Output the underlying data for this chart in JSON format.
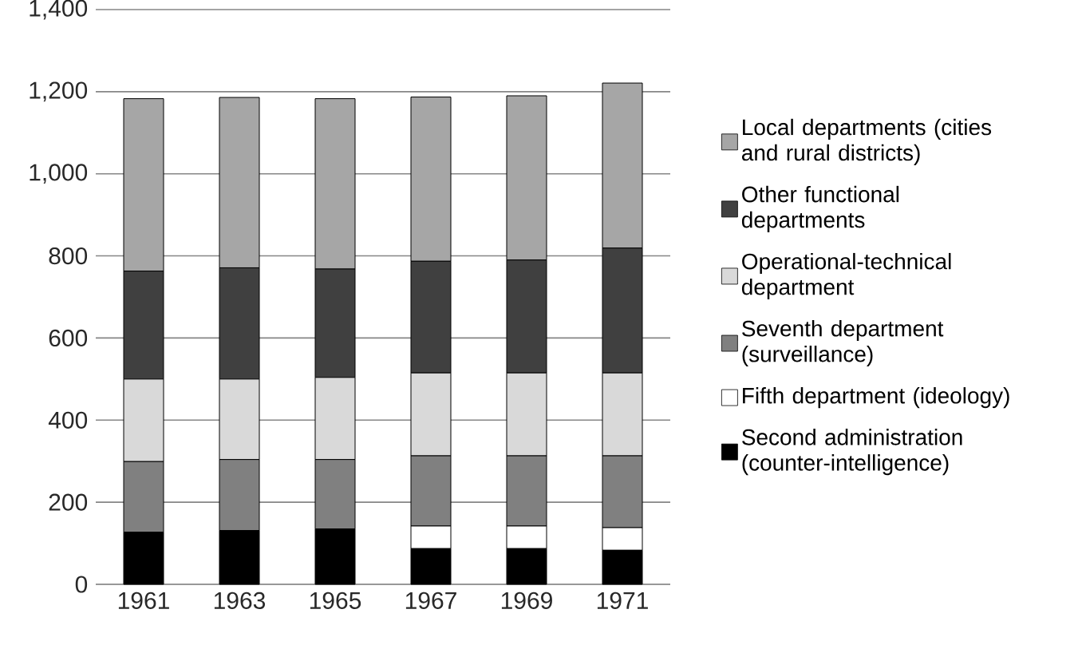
{
  "chart_data": {
    "type": "bar",
    "stacked": true,
    "categories": [
      "1961",
      "1963",
      "1965",
      "1967",
      "1969",
      "1971"
    ],
    "series": [
      {
        "name": "Second administration (counter-intelligence)",
        "color": "#000000",
        "values": [
          127,
          131,
          135,
          87,
          87,
          83
        ]
      },
      {
        "name": "Fifth department (ideology)",
        "color": "#ffffff",
        "values": [
          0,
          0,
          0,
          55,
          55,
          55
        ]
      },
      {
        "name": "Seventh department (surveillance)",
        "color": "#808080",
        "values": [
          172,
          173,
          169,
          171,
          171,
          175
        ]
      },
      {
        "name": "Operational-technical department",
        "color": "#d9d9d9",
        "values": [
          201,
          196,
          200,
          202,
          202,
          202
        ]
      },
      {
        "name": "Other functional departments",
        "color": "#404040",
        "values": [
          263,
          271,
          264,
          272,
          275,
          304
        ]
      },
      {
        "name": "Local departments (cities and rural districts)",
        "color": "#a6a6a6",
        "values": [
          420,
          415,
          415,
          400,
          400,
          402
        ]
      }
    ],
    "ylim": [
      0,
      1400
    ],
    "yticks": [
      0,
      200,
      400,
      600,
      800,
      {
        "value": 1000,
        "label": "1,000"
      },
      {
        "value": 1200,
        "label": "1,200"
      },
      {
        "value": 1400,
        "label": "1,400"
      }
    ],
    "grid": "y",
    "legend": "right"
  }
}
